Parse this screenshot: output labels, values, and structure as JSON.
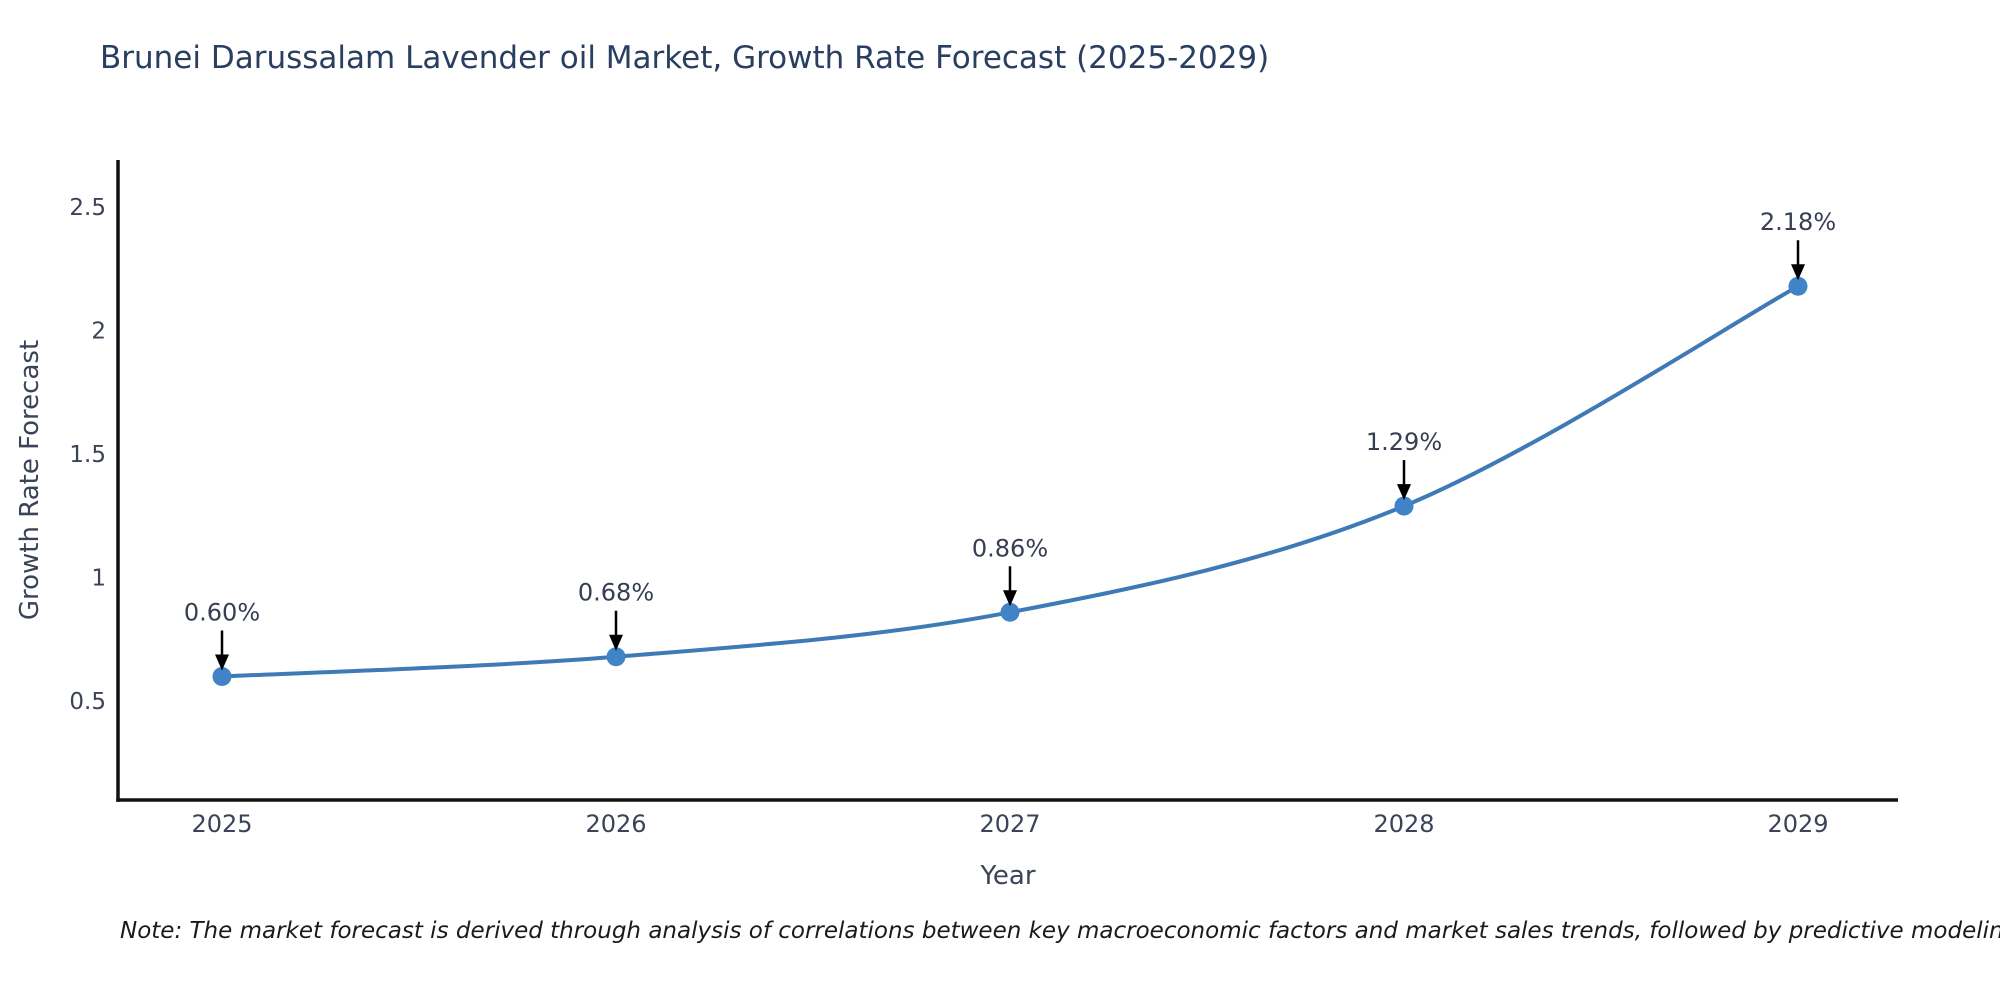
{
  "chart_data": {
    "type": "line",
    "title": "Brunei Darussalam Lavender oil Market, Growth Rate Forecast (2025-2029)",
    "xlabel": "Year",
    "ylabel": "Growth Rate Forecast",
    "x": [
      2025,
      2026,
      2027,
      2028,
      2029
    ],
    "y": [
      0.6,
      0.68,
      0.86,
      1.29,
      2.18
    ],
    "point_labels": [
      "0.60%",
      "0.68%",
      "0.86%",
      "1.29%",
      "2.18%"
    ],
    "xtick_labels": [
      "2025",
      "2026",
      "2027",
      "2028",
      "2029"
    ],
    "yticks": [
      0.5,
      1,
      1.5,
      2,
      2.5
    ],
    "ytick_labels": [
      "0.5",
      "1",
      "1.5",
      "2",
      "2.5"
    ],
    "ylim": [
      0.1,
      2.69
    ],
    "grid": false,
    "legend": "none",
    "line_shape": "spline",
    "marker": "circle-with-down-arrow-annotations",
    "colors": {
      "line": "#3e7ab6",
      "marker": "#4083c6",
      "arrow": "#000000",
      "axis": "#111111",
      "tick_text": "#3b4358",
      "annotation_text": "#353e52",
      "title_text": "#2a3f5f"
    }
  },
  "note": {
    "text": "Note: The market forecast is derived through analysis of correlations between key macroeconomic factors and market sales trends, followed by predictive modeling to project future sales"
  }
}
